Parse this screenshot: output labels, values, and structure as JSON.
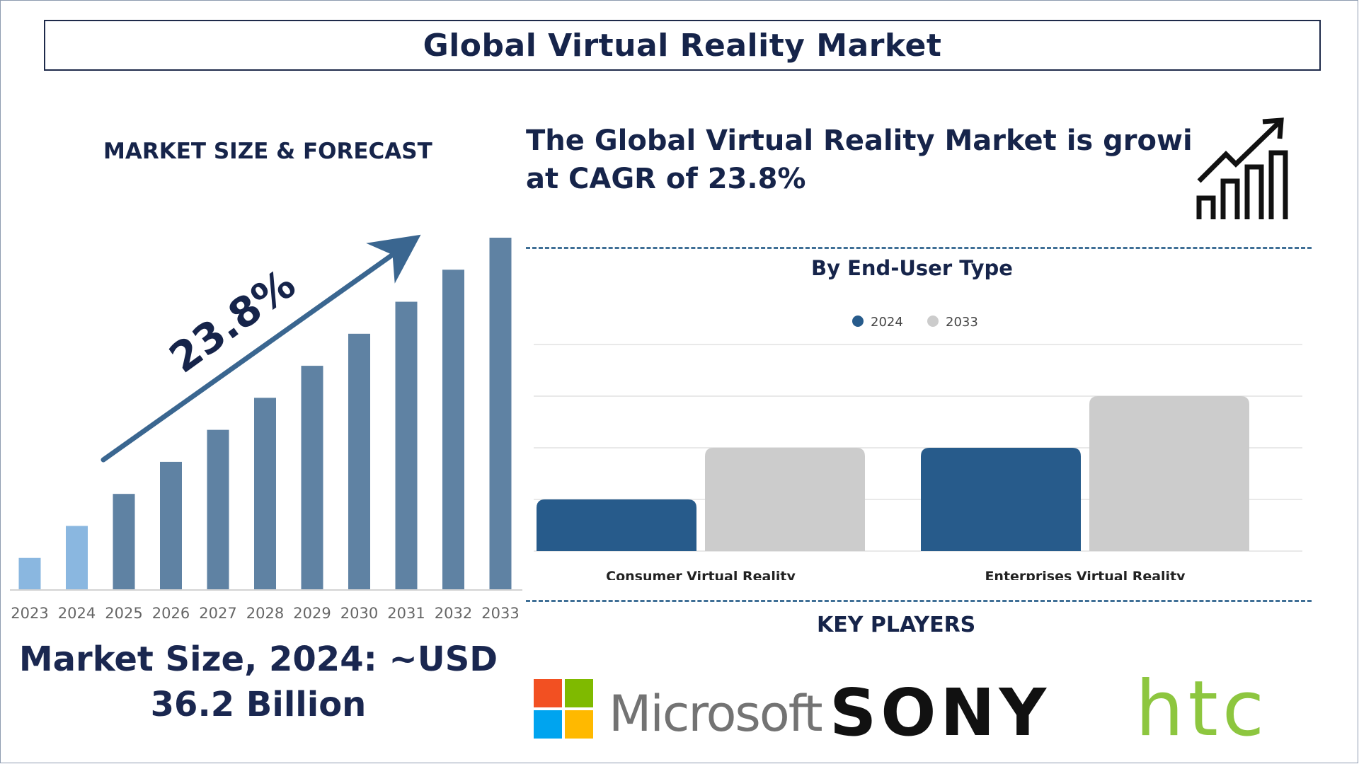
{
  "title": "Global Virtual Reality Market",
  "left_panel": {
    "heading": "MARKET SIZE & FORECAST",
    "growth_label": "23.8%",
    "market_size_line1": "Market Size, 2024: ~USD",
    "market_size_line2": "36.2 Billion"
  },
  "right_panel": {
    "cagr_line1": "The Global Virtual Reality Market is growing",
    "cagr_line2": "at CAGR of 23.8%",
    "growth_icon": "bar-chart-growth-icon",
    "segment_heading": "By End-User Type",
    "key_players_heading": "KEY PLAYERS"
  },
  "key_players": [
    {
      "name": "Microsoft",
      "icon": "microsoft-logo"
    },
    {
      "name": "SONY",
      "icon": "sony-logo"
    },
    {
      "name": "htc",
      "icon": "htc-logo"
    }
  ],
  "colors": {
    "navy": "#16244a",
    "bar_highlight": "#8ab7e0",
    "bar_main": "#5f82a3",
    "series_2024": "#275b8b",
    "series_2033": "#cccccc",
    "arrow": "#3a6690",
    "htc_green": "#8dc63f",
    "sony_black": "#111111",
    "microsoft_gray": "#737373"
  },
  "chart_data": [
    {
      "type": "bar",
      "categories": [
        "2023",
        "2024",
        "2025",
        "2026",
        "2027",
        "2028",
        "2029",
        "2030",
        "2031",
        "2032",
        "2033"
      ],
      "values": [
        1,
        2,
        3,
        4,
        5,
        6,
        7,
        8,
        9,
        10,
        11
      ],
      "highlighted": [
        "2023",
        "2024"
      ],
      "ylim": [
        0,
        11
      ],
      "grid": false
    },
    {
      "type": "bar",
      "title": "By End-User Type",
      "categories": [
        "Consumer Virtual Reality",
        "Enterprises Virtual Reality"
      ],
      "series": [
        {
          "name": "2024",
          "values": [
            1,
            2
          ]
        },
        {
          "name": "2033",
          "values": [
            2,
            3
          ]
        }
      ],
      "ylim": [
        0,
        4
      ],
      "grid": true,
      "legend": "top-center"
    }
  ]
}
